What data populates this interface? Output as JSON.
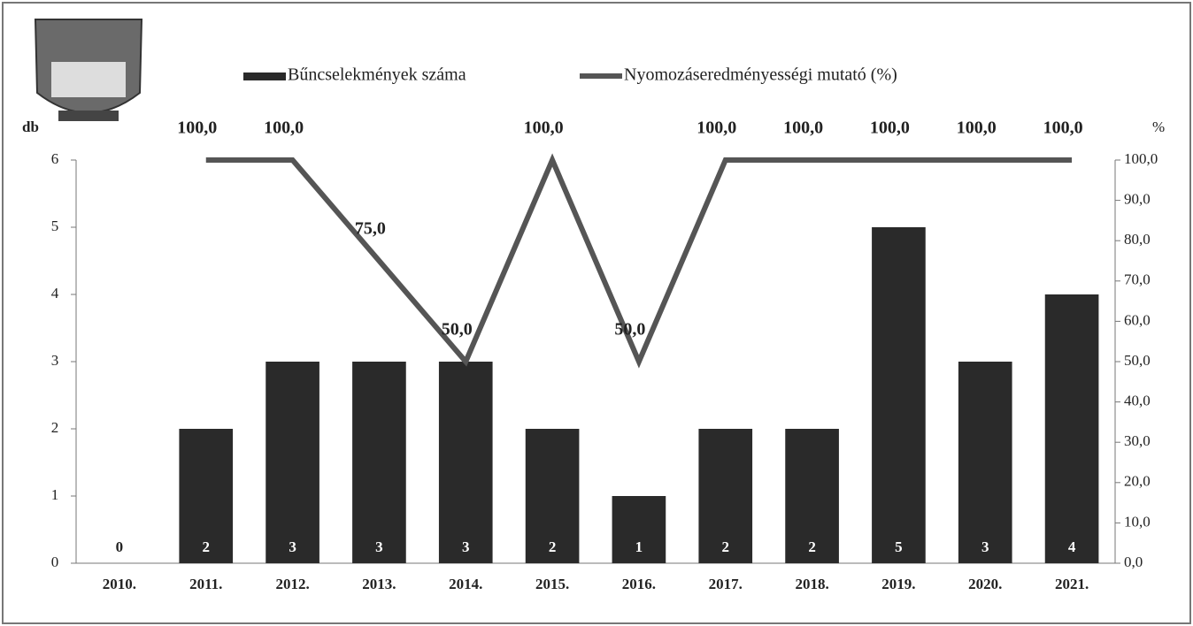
{
  "chart_data": {
    "type": "bar-line",
    "categories": [
      "2010.",
      "2011.",
      "2012.",
      "2013.",
      "2014.",
      "2015.",
      "2016.",
      "2017.",
      "2018.",
      "2019.",
      "2020.",
      "2021."
    ],
    "series": [
      {
        "name": "Bűncselekmények száma",
        "type": "bar",
        "color": "#2a2a2a",
        "values": [
          0,
          2,
          3,
          3,
          3,
          2,
          1,
          2,
          2,
          5,
          3,
          4
        ]
      },
      {
        "name": "Nyomozáseredményességi mutató (%)",
        "type": "line",
        "axis": "y2",
        "color": "#555555",
        "values": [
          null,
          100,
          100,
          75,
          50,
          100,
          50,
          100,
          100,
          100,
          100,
          100
        ],
        "value_labels": [
          null,
          "100,0",
          "100,0",
          "75,0",
          "50,0",
          "100,0",
          "50,0",
          "100,0",
          "100,0",
          "100,0",
          "100,0",
          "100,0"
        ]
      }
    ],
    "y_label": "db",
    "y2_label": "%",
    "ylim": [
      0,
      6
    ],
    "yticks": [
      0,
      1,
      2,
      3,
      4,
      5,
      6
    ],
    "y2lim": [
      0,
      100
    ],
    "y2ticks": [
      {
        "value": 0,
        "label": "0,0"
      },
      {
        "value": 10,
        "label": "10,0"
      },
      {
        "value": 20,
        "label": "20,0"
      },
      {
        "value": 30,
        "label": "30,0"
      },
      {
        "value": 40,
        "label": "40,0"
      },
      {
        "value": 50,
        "label": "50,0"
      },
      {
        "value": 60,
        "label": "60,0"
      },
      {
        "value": 70,
        "label": "70,0"
      },
      {
        "value": 80,
        "label": "80,0"
      },
      {
        "value": 90,
        "label": "90,0"
      },
      {
        "value": 100,
        "label": "100,0"
      }
    ],
    "legend": "top"
  }
}
